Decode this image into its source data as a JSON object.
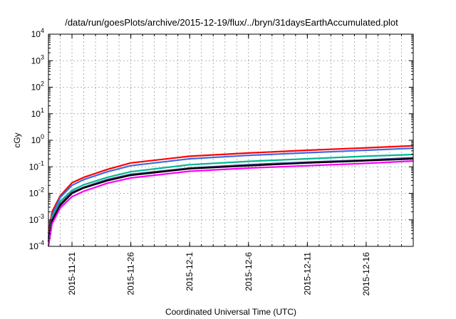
{
  "chart_data": {
    "type": "line",
    "title": "/data/run/goesPlots/archive/2015-12-19/flux/../bryn/31daysEarthAccumulated.plot",
    "xlabel": "Coordinated Universal Time (UTC)",
    "ylabel": "cGy",
    "yscale": "log",
    "ylim_exp": [
      -4,
      4
    ],
    "y_tick_exponents": [
      -4,
      -3,
      -2,
      -1,
      0,
      1,
      2,
      3,
      4
    ],
    "xlim": [
      "2015-11-19",
      "2015-12-20"
    ],
    "x_ticks": [
      "2015-11-21",
      "2015-11-26",
      "2015-12-1",
      "2015-12-6",
      "2015-12-11",
      "2015-12-16"
    ],
    "grid": true,
    "series": [
      {
        "color": "#ff0000",
        "x": [
          "2015-11-19",
          "2015-11-19.3",
          "2015-11-20",
          "2015-11-21",
          "2015-11-22",
          "2015-11-24",
          "2015-11-26",
          "2015-12-1",
          "2015-12-6",
          "2015-12-11",
          "2015-12-16",
          "2015-12-20"
        ],
        "values": [
          0.0003,
          0.002,
          0.008,
          0.025,
          0.04,
          0.08,
          0.14,
          0.25,
          0.33,
          0.42,
          0.52,
          0.62
        ]
      },
      {
        "color": "#4169e1",
        "x": [
          "2015-11-19",
          "2015-11-19.3",
          "2015-11-20",
          "2015-11-21",
          "2015-11-22",
          "2015-11-24",
          "2015-11-26",
          "2015-12-1",
          "2015-12-6",
          "2015-12-11",
          "2015-12-16",
          "2015-12-20"
        ],
        "values": [
          0.0002,
          0.0015,
          0.007,
          0.02,
          0.033,
          0.065,
          0.11,
          0.2,
          0.27,
          0.34,
          0.42,
          0.5
        ]
      },
      {
        "color": "#00b890",
        "x": [
          "2015-11-19",
          "2015-11-19.3",
          "2015-11-20",
          "2015-11-21",
          "2015-11-22",
          "2015-11-24",
          "2015-11-26",
          "2015-12-1",
          "2015-12-6",
          "2015-12-11",
          "2015-12-16",
          "2015-12-20"
        ],
        "values": [
          0.0002,
          0.0012,
          0.005,
          0.013,
          0.021,
          0.04,
          0.065,
          0.12,
          0.16,
          0.2,
          0.25,
          0.29
        ]
      },
      {
        "color": "#483d8b",
        "x": [
          "2015-11-19",
          "2015-11-19.3",
          "2015-11-20",
          "2015-11-21",
          "2015-11-22",
          "2015-11-24",
          "2015-11-26",
          "2015-12-1",
          "2015-12-6",
          "2015-12-11",
          "2015-12-16",
          "2015-12-20"
        ],
        "values": [
          0.00015,
          0.001,
          0.004,
          0.011,
          0.017,
          0.033,
          0.052,
          0.09,
          0.12,
          0.15,
          0.18,
          0.22
        ]
      },
      {
        "color": "#000000",
        "x": [
          "2015-11-19",
          "2015-11-19.3",
          "2015-11-20",
          "2015-11-21",
          "2015-11-22",
          "2015-11-24",
          "2015-11-26",
          "2015-12-1",
          "2015-12-6",
          "2015-12-11",
          "2015-12-16",
          "2015-12-20"
        ],
        "values": [
          0.00015,
          0.0009,
          0.0035,
          0.01,
          0.016,
          0.03,
          0.048,
          0.085,
          0.11,
          0.14,
          0.17,
          0.2
        ]
      },
      {
        "color": "#ff00ff",
        "x": [
          "2015-11-19",
          "2015-11-19.3",
          "2015-11-20",
          "2015-11-21",
          "2015-11-22",
          "2015-11-24",
          "2015-11-26",
          "2015-12-1",
          "2015-12-6",
          "2015-12-11",
          "2015-12-16",
          "2015-12-20"
        ],
        "values": [
          0.0001,
          0.0007,
          0.0028,
          0.0075,
          0.012,
          0.024,
          0.038,
          0.068,
          0.09,
          0.11,
          0.135,
          0.165
        ]
      }
    ]
  }
}
